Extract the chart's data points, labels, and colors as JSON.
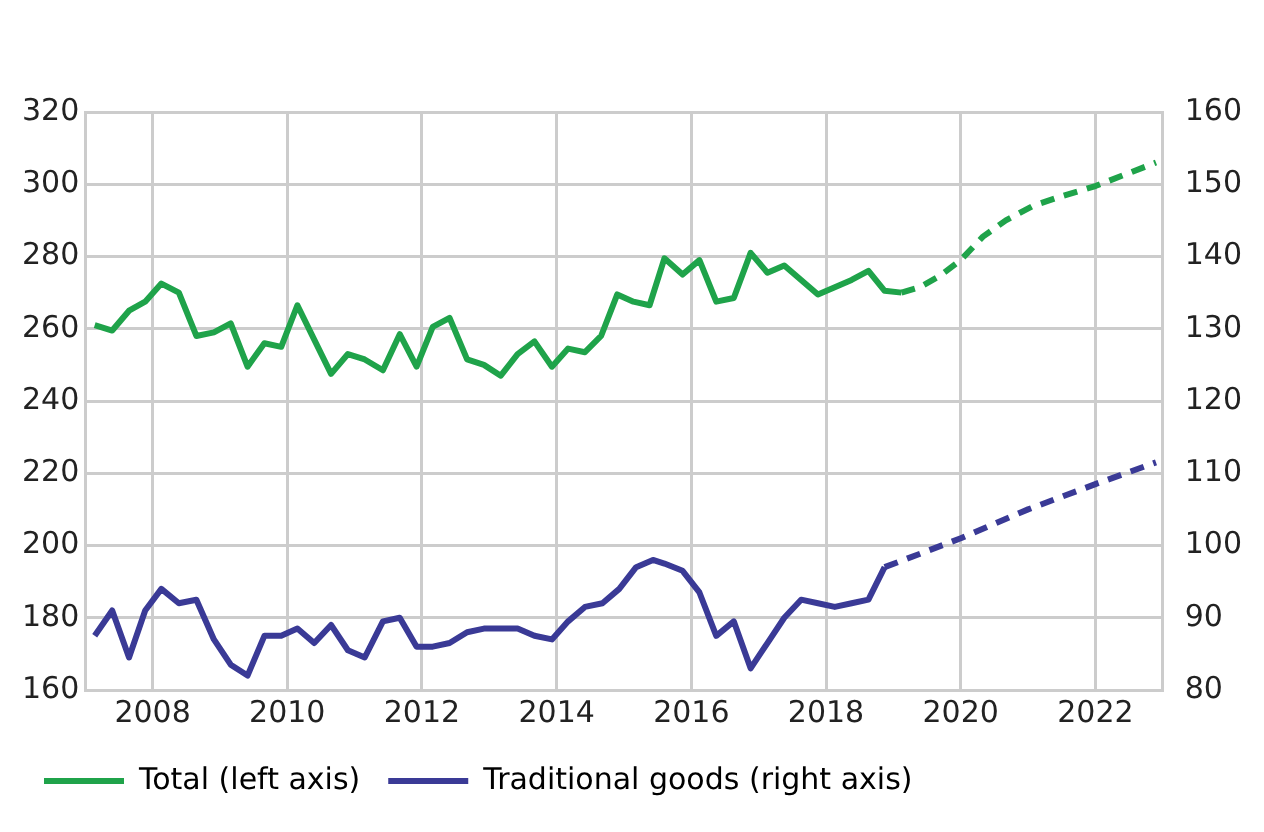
{
  "chart_data": {
    "type": "line",
    "xlim": [
      2007,
      2023
    ],
    "xticks": [
      2008,
      2010,
      2012,
      2014,
      2016,
      2018,
      2020,
      2022
    ],
    "ylim": [
      160,
      320
    ],
    "yticks": [
      160,
      180,
      200,
      220,
      240,
      260,
      280,
      300,
      320
    ],
    "y2lim": [
      80,
      160
    ],
    "y2ticks": [
      80,
      90,
      100,
      110,
      120,
      130,
      140,
      150,
      160
    ],
    "grid": true,
    "legend": "bottom left",
    "marker": "none",
    "series": [
      {
        "name": "Total (left axis)",
        "color": "#1fa34a",
        "line_style": "solid",
        "x": [
          2007.14,
          2007.4,
          2007.65,
          2007.89,
          2008.13,
          2008.39,
          2008.65,
          2008.91,
          2009.16,
          2009.41,
          2009.66,
          2009.91,
          2010.15,
          2010.4,
          2010.65,
          2010.9,
          2011.15,
          2011.42,
          2011.67,
          2011.92,
          2012.16,
          2012.41,
          2012.67,
          2012.92,
          2013.17,
          2013.42,
          2013.67,
          2013.93,
          2014.17,
          2014.42,
          2014.66,
          2014.9,
          2015.14,
          2015.38,
          2015.6,
          2015.87,
          2016.12,
          2016.37,
          2016.63,
          2016.88,
          2017.13,
          2017.38,
          2017.63,
          2017.88,
          2018.13,
          2018.38,
          2018.63,
          2018.87,
          2019.12
        ],
        "values": [
          261,
          259.5,
          265,
          267.5,
          272.5,
          270,
          258,
          259,
          261.5,
          249.5,
          256,
          255,
          266.5,
          257,
          247.5,
          253,
          251.5,
          248.5,
          258.5,
          249.5,
          260.5,
          263,
          251.5,
          250,
          247,
          253,
          256.5,
          249.5,
          254.5,
          253.5,
          258,
          269.5,
          267.5,
          266.5,
          279.5,
          275,
          279,
          267.5,
          268.5,
          281,
          275.5,
          277.5,
          273.5,
          269.5,
          271.5,
          273.5,
          276,
          270.5,
          270
        ]
      },
      {
        "color": "#1fa34a",
        "line_style": "dashed",
        "x": [
          2019.12,
          2019.39,
          2019.68,
          2020,
          2020.33,
          2020.67,
          2021.07,
          2021.47,
          2022,
          2022.9
        ],
        "values": [
          270,
          271.5,
          274.5,
          279,
          285.5,
          290,
          294,
          296.5,
          299.5,
          306
        ]
      },
      {
        "name": "Traditional goods (right axis)",
        "color": "#3a3a96",
        "axis": "y2",
        "line_style": "solid",
        "x": [
          2007.14,
          2007.4,
          2007.65,
          2007.89,
          2008.13,
          2008.39,
          2008.65,
          2008.91,
          2009.16,
          2009.41,
          2009.66,
          2009.91,
          2010.15,
          2010.4,
          2010.65,
          2010.9,
          2011.15,
          2011.42,
          2011.67,
          2011.92,
          2012.16,
          2012.41,
          2012.67,
          2012.92,
          2013.17,
          2013.42,
          2013.67,
          2013.93,
          2014.17,
          2014.42,
          2014.68,
          2014.93,
          2015.18,
          2015.43,
          2015.6,
          2015.87,
          2016.12,
          2016.37,
          2016.63,
          2016.88,
          2017.13,
          2017.38,
          2017.63,
          2017.88,
          2018.13,
          2018.38,
          2018.63,
          2018.87
        ],
        "values": [
          87.5,
          91,
          84.5,
          91,
          94,
          92,
          92.5,
          87,
          83.5,
          82,
          87.5,
          87.5,
          88.5,
          86.5,
          89,
          85.5,
          84.5,
          89.5,
          90,
          86,
          86,
          86.5,
          88,
          88.5,
          88.5,
          88.5,
          87.5,
          87,
          89.5,
          91.5,
          92,
          94,
          97,
          98,
          97.5,
          96.5,
          93.5,
          87.5,
          89.5,
          83,
          86.5,
          90,
          92.5,
          92,
          91.5,
          92,
          92.5,
          97
        ]
      },
      {
        "color": "#3a3a96",
        "axis": "y2",
        "line_style": "dashed",
        "x": [
          2018.87,
          2020,
          2021,
          2022,
          2022.9
        ],
        "values": [
          97,
          101,
          105,
          108.5,
          111.5
        ]
      }
    ]
  }
}
